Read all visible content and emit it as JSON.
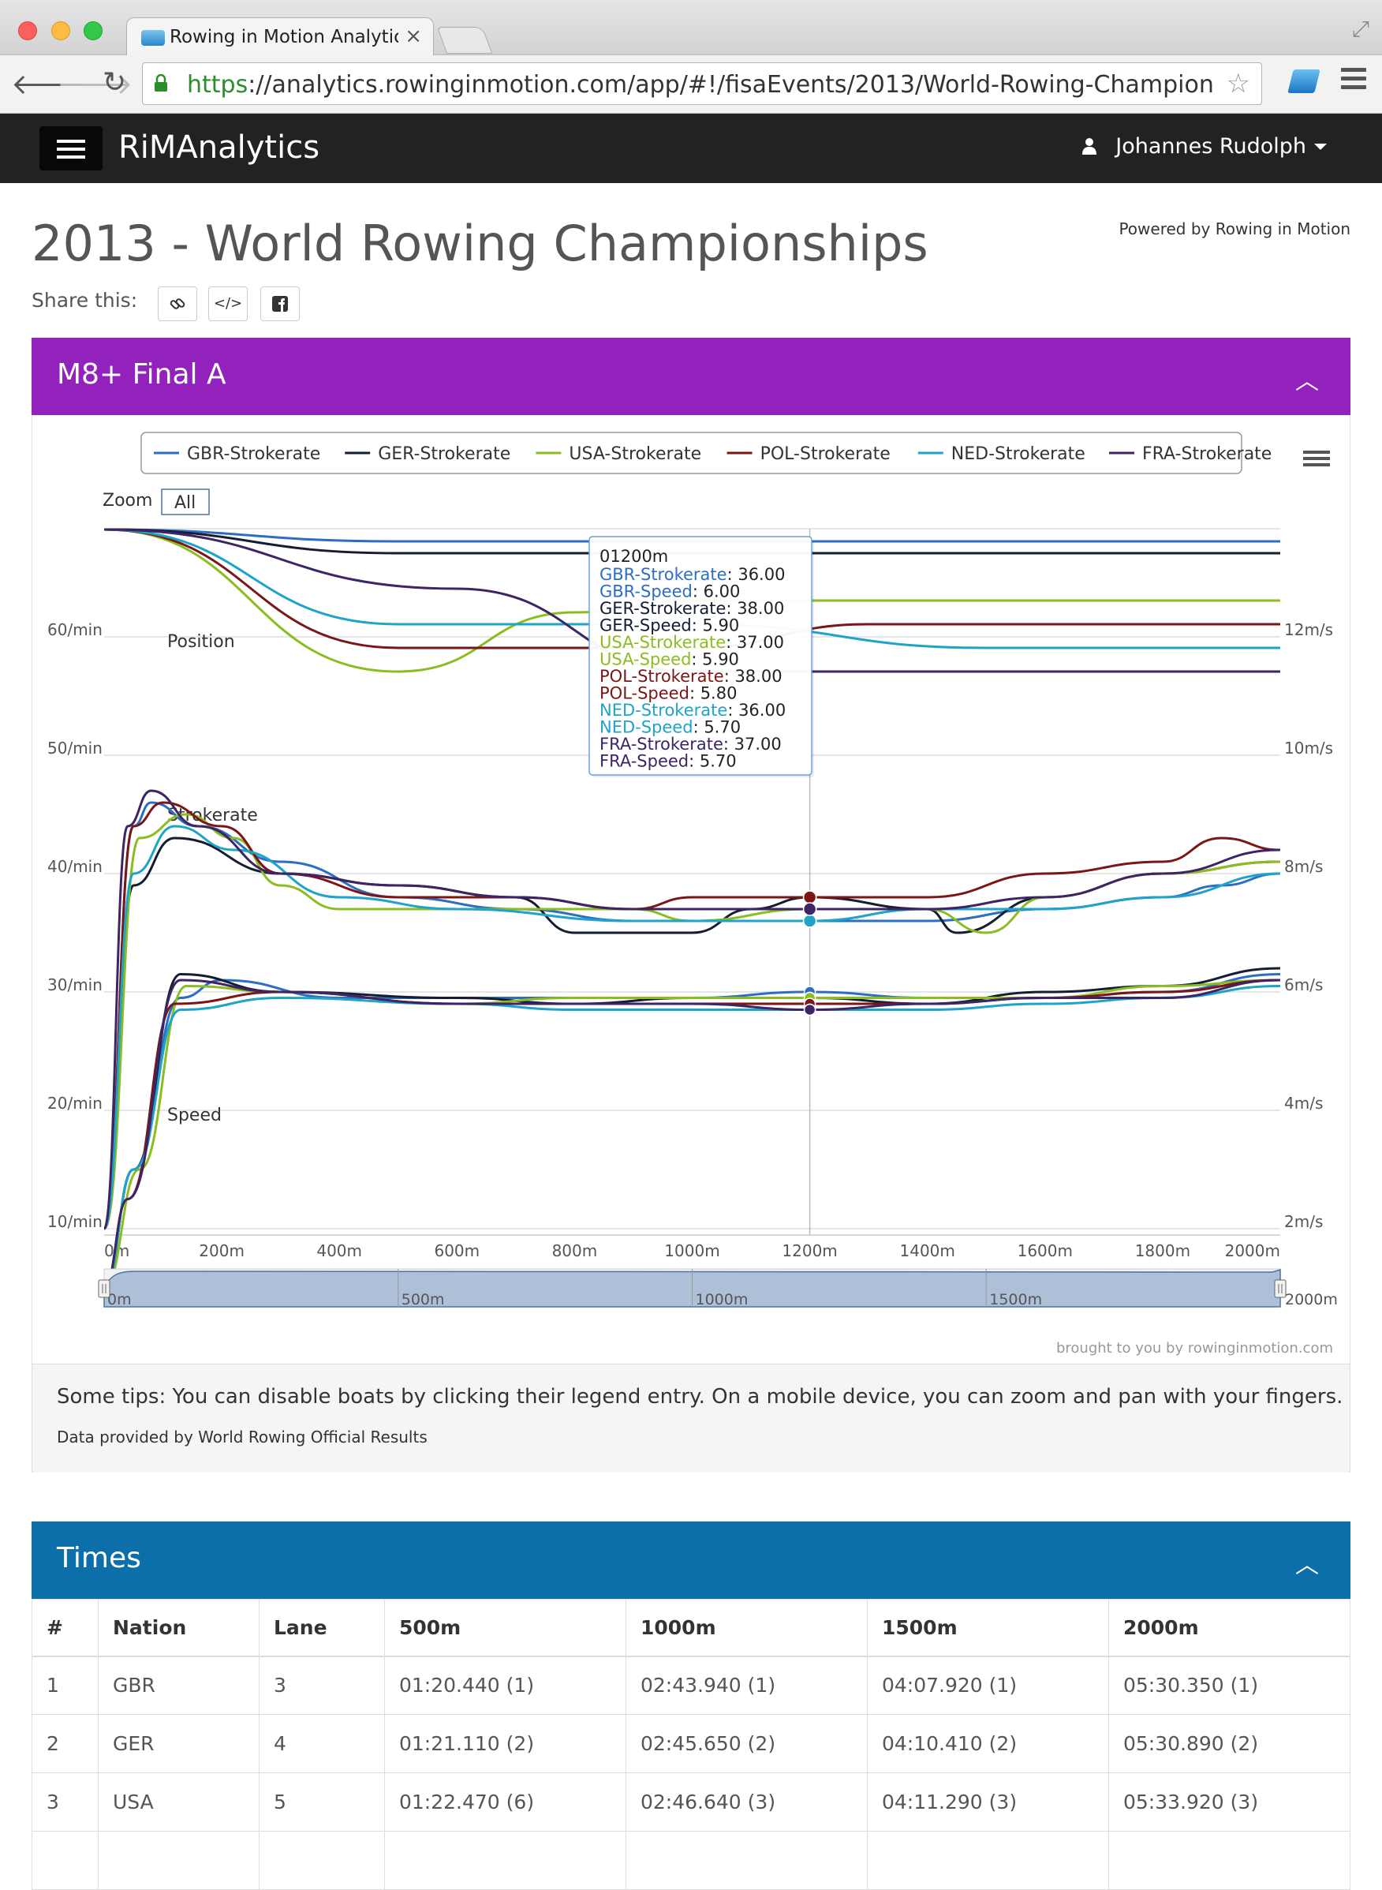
{
  "browser": {
    "tab_title": "Rowing in Motion Analytics",
    "tab_close": "×",
    "url_scheme": "https",
    "url_rest": "://analytics.rowinginmotion.com/app/#!/fisaEvents/2013/World-Rowing-Championships..."
  },
  "app": {
    "brand_prefix": "RiM",
    "brand_suffix": "Analytics",
    "user_name": "Johannes Rudolph"
  },
  "page": {
    "title": "2013 - World Rowing Championships",
    "powered_by": "Powered by Rowing in Motion",
    "share_label": "Share this:",
    "share_buttons": [
      "link-icon",
      "code-icon",
      "facebook-icon"
    ]
  },
  "race_panel": {
    "title": "M8+ Final A",
    "color": "#9222bb",
    "tips": "Some tips: You can disable boats by clicking their legend entry. On a mobile device, you can zoom and pan with your fingers.",
    "data_prefix": "Data provided by",
    "data_source": "World Rowing Official Results"
  },
  "chart_data": {
    "type": "line",
    "zoom_label": "Zoom",
    "zoom_button": "All",
    "credit": "brought to you by rowinginmotion.com",
    "section_labels": [
      "Position",
      "Strokerate",
      "Speed"
    ],
    "x_ticks": [
      "0m",
      "200m",
      "400m",
      "600m",
      "800m",
      "1000m",
      "1200m",
      "1400m",
      "1600m",
      "1800m",
      "2000m"
    ],
    "y_left_ticks": [
      "60/min",
      "50/min",
      "40/min",
      "30/min",
      "20/min",
      "10/min"
    ],
    "y_right_ticks": [
      "12m/s",
      "10m/s",
      "8m/s",
      "6m/s",
      "4m/s",
      "2m/s"
    ],
    "navigator_ticks": [
      "0m",
      "500m",
      "1000m",
      "1500m",
      "2000m"
    ],
    "legend_position": "top",
    "crosshair_x": 1200,
    "series": [
      {
        "name": "GBR-Strokerate",
        "color": "#2d6ec4",
        "strokerate": [
          [
            0,
            10
          ],
          [
            50,
            44
          ],
          [
            80,
            46
          ],
          [
            160,
            44
          ],
          [
            300,
            41
          ],
          [
            500,
            38
          ],
          [
            700,
            37
          ],
          [
            900,
            36
          ],
          [
            1100,
            36
          ],
          [
            1200,
            36
          ],
          [
            1400,
            36
          ],
          [
            1600,
            37
          ],
          [
            1800,
            38
          ],
          [
            1900,
            39
          ],
          [
            2000,
            40
          ]
        ],
        "speed": [
          [
            0,
            1
          ],
          [
            50,
            3
          ],
          [
            130,
            5.9
          ],
          [
            200,
            6.2
          ],
          [
            400,
            5.9
          ],
          [
            600,
            5.9
          ],
          [
            800,
            5.9
          ],
          [
            1000,
            5.9
          ],
          [
            1200,
            6.0
          ],
          [
            1400,
            5.9
          ],
          [
            1600,
            5.9
          ],
          [
            1800,
            6.0
          ],
          [
            2000,
            6.3
          ]
        ],
        "position_offset": [
          [
            0,
            0
          ],
          [
            500,
            -1
          ],
          [
            2000,
            -1
          ]
        ]
      },
      {
        "name": "GER-Strokerate",
        "color": "#151d33",
        "strokerate": [
          [
            0,
            10
          ],
          [
            50,
            39
          ],
          [
            120,
            43
          ],
          [
            300,
            40
          ],
          [
            500,
            39
          ],
          [
            700,
            38
          ],
          [
            800,
            35
          ],
          [
            1000,
            35
          ],
          [
            1100,
            37
          ],
          [
            1200,
            38
          ],
          [
            1400,
            37
          ],
          [
            1450,
            35
          ],
          [
            1600,
            38
          ],
          [
            1800,
            40
          ],
          [
            2000,
            41
          ]
        ],
        "speed": [
          [
            0,
            1
          ],
          [
            50,
            3
          ],
          [
            130,
            6.3
          ],
          [
            300,
            6.0
          ],
          [
            600,
            5.9
          ],
          [
            800,
            5.8
          ],
          [
            1000,
            5.9
          ],
          [
            1200,
            5.9
          ],
          [
            1400,
            5.8
          ],
          [
            1600,
            6.0
          ],
          [
            1800,
            6.1
          ],
          [
            2000,
            6.4
          ]
        ],
        "position_offset": [
          [
            0,
            0
          ],
          [
            500,
            -2
          ],
          [
            2000,
            -2
          ]
        ]
      },
      {
        "name": "USA-Strokerate",
        "color": "#8cbd20",
        "strokerate": [
          [
            0,
            10
          ],
          [
            60,
            43
          ],
          [
            140,
            45
          ],
          [
            220,
            43
          ],
          [
            300,
            39
          ],
          [
            400,
            37
          ],
          [
            600,
            37
          ],
          [
            900,
            37
          ],
          [
            1000,
            36
          ],
          [
            1200,
            37
          ],
          [
            1400,
            37
          ],
          [
            1500,
            35
          ],
          [
            1600,
            38
          ],
          [
            1800,
            40
          ],
          [
            2000,
            41
          ]
        ],
        "speed": [
          [
            0,
            1
          ],
          [
            60,
            3
          ],
          [
            140,
            6.1
          ],
          [
            300,
            6.0
          ],
          [
            600,
            5.8
          ],
          [
            800,
            5.9
          ],
          [
            1000,
            5.9
          ],
          [
            1200,
            5.9
          ],
          [
            1400,
            5.9
          ],
          [
            1600,
            5.9
          ],
          [
            1800,
            6.1
          ],
          [
            2000,
            6.2
          ]
        ],
        "position_offset": [
          [
            0,
            0
          ],
          [
            500,
            -12
          ],
          [
            800,
            -7
          ],
          [
            1000,
            -6
          ],
          [
            2000,
            -6
          ]
        ]
      },
      {
        "name": "POL-Strokerate",
        "color": "#7a1616",
        "strokerate": [
          [
            0,
            10
          ],
          [
            50,
            44
          ],
          [
            100,
            46
          ],
          [
            200,
            44
          ],
          [
            300,
            40
          ],
          [
            500,
            38
          ],
          [
            700,
            38
          ],
          [
            900,
            37
          ],
          [
            1000,
            38
          ],
          [
            1200,
            38
          ],
          [
            1400,
            38
          ],
          [
            1600,
            40
          ],
          [
            1800,
            41
          ],
          [
            1900,
            43
          ],
          [
            2000,
            42
          ]
        ],
        "speed": [
          [
            0,
            1
          ],
          [
            40,
            2.5
          ],
          [
            120,
            5.8
          ],
          [
            300,
            6.0
          ],
          [
            600,
            5.8
          ],
          [
            800,
            5.8
          ],
          [
            1000,
            5.8
          ],
          [
            1200,
            5.8
          ],
          [
            1400,
            5.8
          ],
          [
            1600,
            5.9
          ],
          [
            1800,
            6.0
          ],
          [
            2000,
            6.2
          ]
        ],
        "position_offset": [
          [
            0,
            0
          ],
          [
            500,
            -10
          ],
          [
            1000,
            -10
          ],
          [
            1300,
            -8
          ],
          [
            2000,
            -8
          ]
        ]
      },
      {
        "name": "NED-Strokerate",
        "color": "#1fa3c9",
        "strokerate": [
          [
            0,
            10
          ],
          [
            50,
            40
          ],
          [
            120,
            44
          ],
          [
            220,
            42
          ],
          [
            400,
            38
          ],
          [
            600,
            37
          ],
          [
            900,
            36
          ],
          [
            1100,
            36
          ],
          [
            1200,
            36
          ],
          [
            1400,
            37
          ],
          [
            1600,
            37
          ],
          [
            1800,
            38
          ],
          [
            2000,
            40
          ]
        ],
        "speed": [
          [
            0,
            1
          ],
          [
            50,
            3
          ],
          [
            130,
            5.7
          ],
          [
            300,
            5.9
          ],
          [
            600,
            5.8
          ],
          [
            800,
            5.7
          ],
          [
            1000,
            5.7
          ],
          [
            1200,
            5.7
          ],
          [
            1400,
            5.7
          ],
          [
            1600,
            5.8
          ],
          [
            1800,
            5.9
          ],
          [
            2000,
            6.1
          ]
        ],
        "position_offset": [
          [
            0,
            0
          ],
          [
            500,
            -8
          ],
          [
            1000,
            -8
          ],
          [
            1500,
            -10
          ],
          [
            2000,
            -10
          ]
        ]
      },
      {
        "name": "FRA-Strokerate",
        "color": "#3e2465",
        "strokerate": [
          [
            0,
            10
          ],
          [
            40,
            44
          ],
          [
            80,
            47
          ],
          [
            160,
            44
          ],
          [
            300,
            40
          ],
          [
            500,
            39
          ],
          [
            700,
            38
          ],
          [
            900,
            37
          ],
          [
            1100,
            37
          ],
          [
            1200,
            37
          ],
          [
            1400,
            37
          ],
          [
            1600,
            38
          ],
          [
            1800,
            40
          ],
          [
            2000,
            42
          ]
        ],
        "speed": [
          [
            0,
            1
          ],
          [
            40,
            2.5
          ],
          [
            130,
            6.2
          ],
          [
            300,
            6.0
          ],
          [
            600,
            5.8
          ],
          [
            800,
            5.8
          ],
          [
            1000,
            5.8
          ],
          [
            1200,
            5.7
          ],
          [
            1400,
            5.8
          ],
          [
            1600,
            5.9
          ],
          [
            1800,
            5.9
          ],
          [
            2000,
            6.2
          ]
        ],
        "position_offset": [
          [
            0,
            0
          ],
          [
            600,
            -5
          ],
          [
            1000,
            -12
          ],
          [
            2000,
            -12
          ]
        ]
      }
    ],
    "tooltip": {
      "title": "01200m",
      "rows": [
        {
          "label": "GBR-Strokerate",
          "value": "36.00",
          "color": "#2d6ec4"
        },
        {
          "label": "GBR-Speed",
          "value": "6.00",
          "color": "#2d6ec4"
        },
        {
          "label": "GER-Strokerate",
          "value": "38.00",
          "color": "#151d33"
        },
        {
          "label": "GER-Speed",
          "value": "5.90",
          "color": "#151d33"
        },
        {
          "label": "USA-Strokerate",
          "value": "37.00",
          "color": "#8cbd20"
        },
        {
          "label": "USA-Speed",
          "value": "5.90",
          "color": "#8cbd20"
        },
        {
          "label": "POL-Strokerate",
          "value": "38.00",
          "color": "#7a1616"
        },
        {
          "label": "POL-Speed",
          "value": "5.80",
          "color": "#7a1616"
        },
        {
          "label": "NED-Strokerate",
          "value": "36.00",
          "color": "#1fa3c9"
        },
        {
          "label": "NED-Speed",
          "value": "5.70",
          "color": "#1fa3c9"
        },
        {
          "label": "FRA-Strokerate",
          "value": "37.00",
          "color": "#3e2465"
        },
        {
          "label": "FRA-Speed",
          "value": "5.70",
          "color": "#3e2465"
        }
      ]
    }
  },
  "times_panel": {
    "title": "Times",
    "color": "#0d6fa9",
    "headers": [
      "#",
      "Nation",
      "Lane",
      "500m",
      "1000m",
      "1500m",
      "2000m"
    ],
    "rows": [
      [
        "1",
        "GBR",
        "3",
        "01:20.440 (1)",
        "02:43.940 (1)",
        "04:07.920 (1)",
        "05:30.350 (1)"
      ],
      [
        "2",
        "GER",
        "4",
        "01:21.110 (2)",
        "02:45.650 (2)",
        "04:10.410 (2)",
        "05:30.890 (2)"
      ],
      [
        "3",
        "USA",
        "5",
        "01:22.470 (6)",
        "02:46.640 (3)",
        "04:11.290 (3)",
        "05:33.920 (3)"
      ],
      [
        "",
        "",
        "",
        "",
        "",
        "",
        ""
      ]
    ]
  }
}
